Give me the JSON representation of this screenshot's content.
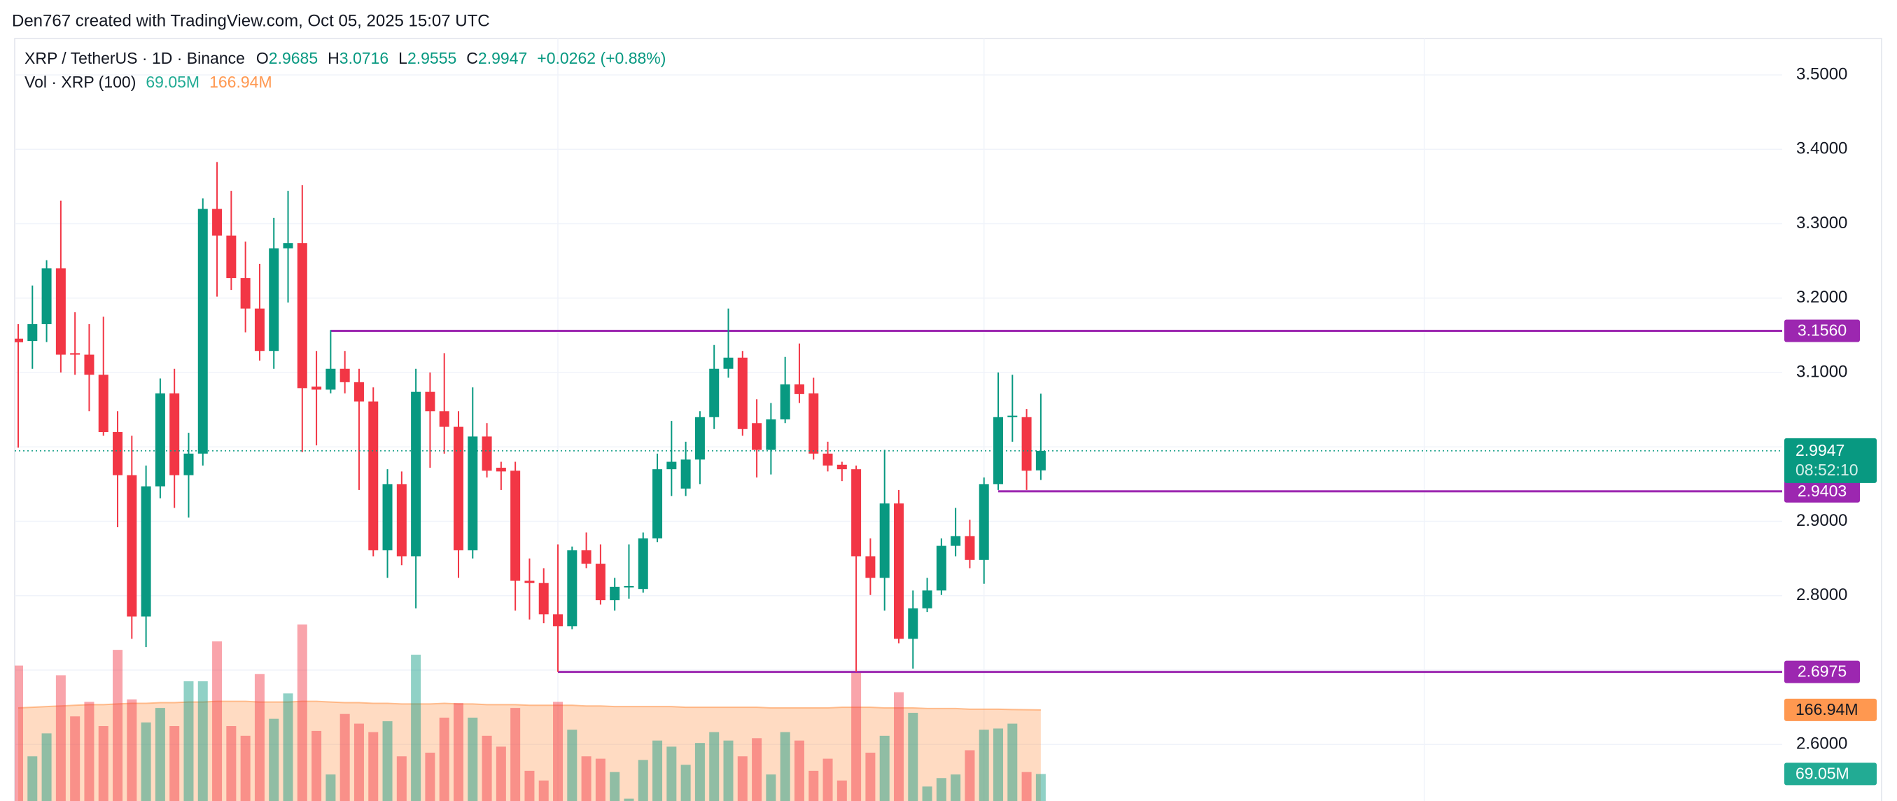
{
  "header": "Den767 created with TradingView.com, Oct 05, 2025 15:07 UTC",
  "chart_data": {
    "type": "candlestick",
    "legend": {
      "symbol": "XRP / TetherUS · 1D · Binance",
      "ohlc_labels": [
        "O",
        "H",
        "L",
        "C"
      ],
      "change": "+0.0262 (+0.88%)",
      "volume_title": "Vol · XRP (100)",
      "volume": "69.05M",
      "volume_ma": "166.94M"
    },
    "open": [
      3.1455,
      3.1423,
      3.165,
      3.24,
      3.126,
      3.124,
      3.097,
      3.02,
      2.962,
      2.772,
      2.947,
      3.072,
      2.962,
      2.991,
      3.32,
      3.284,
      3.227,
      3.186,
      3.129,
      3.267,
      3.274,
      3.081,
      3.077,
      3.105,
      3.087,
      3.061,
      2.861,
      2.95,
      2.853,
      3.074,
      3.048,
      3.027,
      2.861,
      3.014,
      2.972,
      2.968,
      2.82,
      2.817,
      2.775,
      2.759,
      2.861,
      2.843,
      2.794,
      2.811,
      2.809,
      2.877,
      2.97,
      2.944,
      2.983,
      3.04,
      3.105,
      3.12,
      3.032,
      2.996,
      3.037,
      3.084,
      3.072,
      2.991,
      2.976,
      2.97,
      2.853,
      2.824,
      2.924,
      2.742,
      2.783,
      2.807,
      2.867,
      2.88,
      2.848,
      2.95,
      3.04,
      3.04,
      2.9685
    ],
    "high": [
      3.165,
      3.217,
      3.251,
      3.331,
      3.181,
      3.165,
      3.175,
      3.048,
      3.015,
      2.975,
      3.092,
      3.105,
      3.019,
      3.334,
      3.383,
      3.344,
      3.276,
      3.246,
      3.308,
      3.344,
      3.352,
      3.129,
      3.157,
      3.129,
      3.105,
      3.08,
      2.97,
      2.967,
      3.105,
      3.1,
      3.126,
      3.048,
      3.08,
      3.032,
      2.98,
      2.98,
      2.85,
      2.837,
      2.869,
      2.866,
      2.885,
      2.869,
      2.824,
      2.869,
      2.885,
      2.991,
      3.035,
      3.007,
      3.048,
      3.137,
      3.186,
      3.129,
      3.064,
      3.059,
      3.121,
      3.139,
      3.093,
      3.007,
      2.98,
      2.975,
      2.877,
      2.996,
      2.942,
      2.807,
      2.824,
      2.877,
      2.918,
      2.902,
      2.959,
      3.1,
      3.097,
      3.051,
      3.0716
    ],
    "low": [
      2.999,
      3.105,
      3.141,
      3.1,
      3.097,
      3.048,
      3.015,
      2.892,
      2.742,
      2.731,
      2.931,
      2.918,
      2.905,
      2.975,
      3.202,
      3.211,
      3.154,
      3.116,
      3.105,
      3.194,
      2.993,
      3.002,
      3.072,
      3.072,
      2.942,
      2.853,
      2.824,
      2.841,
      2.783,
      2.972,
      2.991,
      2.824,
      2.85,
      2.959,
      2.942,
      2.78,
      2.768,
      2.763,
      2.6975,
      2.755,
      2.837,
      2.788,
      2.78,
      2.796,
      2.804,
      2.872,
      2.934,
      2.934,
      2.95,
      3.024,
      3.093,
      3.015,
      2.959,
      2.963,
      3.032,
      3.059,
      2.983,
      2.967,
      2.954,
      2.6975,
      2.801,
      2.78,
      2.736,
      2.702,
      2.778,
      2.801,
      2.853,
      2.837,
      2.816,
      2.942,
      3.007,
      2.942,
      2.9555
    ],
    "close": [
      3.1407,
      3.165,
      3.24,
      3.124,
      3.124,
      3.097,
      3.02,
      2.962,
      2.772,
      2.947,
      3.072,
      2.962,
      2.991,
      3.32,
      3.284,
      3.227,
      3.186,
      3.129,
      3.267,
      3.274,
      3.079,
      3.077,
      3.105,
      3.087,
      3.061,
      2.861,
      2.95,
      2.853,
      3.074,
      3.048,
      3.027,
      2.861,
      3.014,
      2.968,
      2.967,
      2.82,
      2.817,
      2.775,
      2.759,
      2.861,
      2.843,
      2.794,
      2.812,
      2.813,
      2.877,
      2.97,
      2.98,
      2.983,
      3.04,
      3.105,
      3.12,
      3.024,
      2.996,
      3.037,
      3.084,
      3.071,
      2.991,
      2.975,
      2.97,
      2.853,
      2.824,
      2.924,
      2.742,
      2.783,
      2.807,
      2.867,
      2.88,
      2.848,
      2.95,
      3.04,
      3.042,
      2.968,
      2.9947
    ],
    "volume": [
      234.6,
      96,
      131.1,
      219.8,
      157,
      179.2,
      142.2,
      258.6,
      182.9,
      147.8,
      169.9,
      142.2,
      210.6,
      210.6,
      271.5,
      142.2,
      127.4,
      221.6,
      153.3,
      192.1,
      297.4,
      134.8,
      68.3,
      160.7,
      145.9,
      133,
      149.6,
      96,
      251.2,
      101.6,
      155.1,
      177.3,
      155.1,
      127.4,
      110.8,
      169.9,
      73.9,
      59.1,
      179.2,
      136.7,
      96,
      92.4,
      72,
      31.4,
      90.5,
      120.1,
      110.8,
      83.1,
      116.4,
      133,
      120.1,
      96,
      123.7,
      68.3,
      133,
      120.1,
      73.9,
      92.4,
      59.1,
      223.5,
      101.6,
      127.4,
      193.9,
      162.5,
      49.9,
      62.8,
      68.3,
      105.3,
      136.7,
      138.5,
      145.9,
      72,
      69.05
    ],
    "volume_ma": [
      170,
      171,
      172,
      173,
      174,
      175,
      175,
      176,
      177,
      177,
      178,
      178,
      179,
      179,
      180,
      180,
      180,
      179,
      179,
      179,
      180,
      180,
      179,
      178,
      178,
      177,
      177,
      176,
      176,
      176,
      177,
      176,
      176,
      175,
      175,
      175,
      174,
      174,
      174,
      174,
      173,
      173,
      172,
      172,
      172,
      172,
      172,
      171,
      171,
      171,
      171,
      171,
      171,
      170,
      170,
      170,
      170,
      170,
      171,
      171,
      171,
      170,
      170,
      170,
      169,
      169,
      169,
      168,
      168,
      168,
      167.5,
      167.2,
      166.94
    ],
    "ylim": [
      2.524,
      3.549
    ],
    "yticks": [
      {
        "value": 2.6,
        "label": "2.6000"
      },
      {
        "value": 2.7,
        "label": "2.7000"
      },
      {
        "value": 2.8,
        "label": "2.8000"
      },
      {
        "value": 2.9,
        "label": "2.9000"
      },
      {
        "value": 3.0,
        "label": "3.0000"
      },
      {
        "value": 3.1,
        "label": "3.1000"
      },
      {
        "value": 3.2,
        "label": "3.2000"
      },
      {
        "value": 3.3,
        "label": "3.3000"
      },
      {
        "value": 3.4,
        "label": "3.4000"
      },
      {
        "value": 3.5,
        "label": "3.5000"
      }
    ],
    "volume_ylim": [
      0,
      340
    ],
    "vgrid_index": [
      38,
      68,
      99
    ],
    "grid": true,
    "levels": [
      {
        "value": 3.156,
        "label": "3.1560",
        "start_index": 22
      },
      {
        "value": 2.9403,
        "label": "2.9403",
        "start_index": 69
      },
      {
        "value": 2.6975,
        "label": "2.6975",
        "start_index": 38
      }
    ],
    "countdown": "08:52:10",
    "up_color": "#089981",
    "down_color": "#f23645",
    "level_color": "#9c27b0",
    "volume_ma_color": "#ff9850"
  }
}
